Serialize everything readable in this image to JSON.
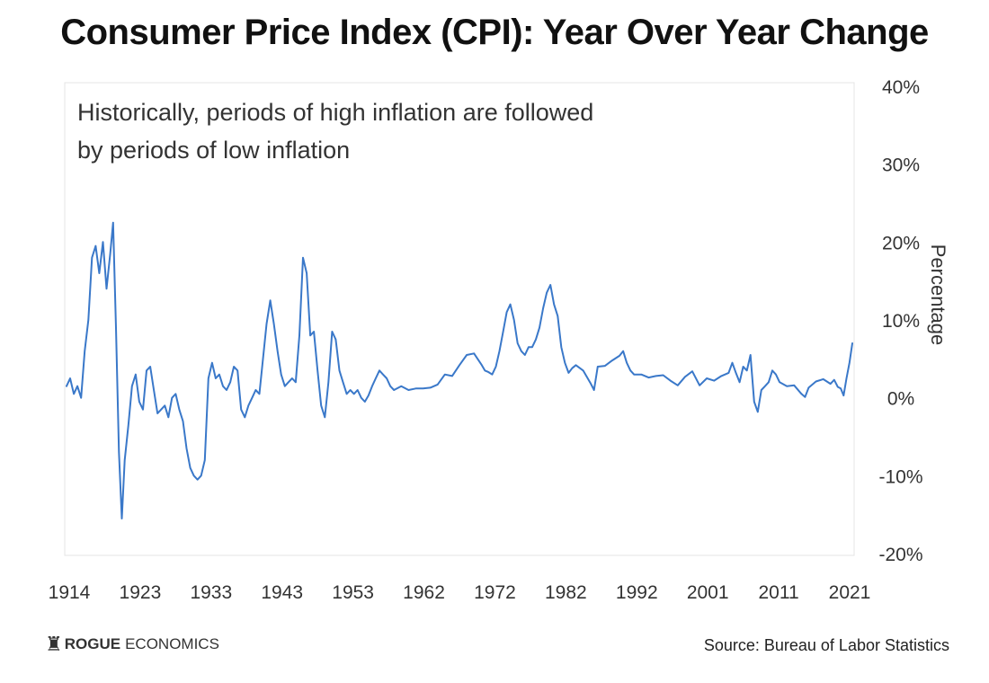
{
  "chart_data": {
    "type": "line",
    "title": "Consumer Price Index (CPI): Year Over Year Change",
    "annotation": [
      "Historically, periods of high inflation are followed",
      "by periods of low inflation"
    ],
    "ylabel": "Percentage",
    "ylim": [
      -20,
      40
    ],
    "y_ticks": [
      "40%",
      "30%",
      "20%",
      "10%",
      "0%",
      "-10%",
      "-20%"
    ],
    "x_ticks": [
      "1914",
      "1923",
      "1933",
      "1943",
      "1953",
      "1962",
      "1972",
      "1982",
      "1992",
      "2001",
      "2011",
      "2021"
    ],
    "x_range": [
      1914,
      2022
    ],
    "y_axis_position": "right",
    "grid": false,
    "line_color": "#3a78c9",
    "series": [
      {
        "x": [
          1914.0,
          1914.5,
          1915.0,
          1915.5,
          1916.0,
          1916.5,
          1917.0,
          1917.5,
          1918.0,
          1918.5,
          1919.0,
          1919.5,
          1920.0,
          1920.4,
          1920.8,
          1921.2,
          1921.6,
          1922.0,
          1922.5,
          1923.0,
          1923.5,
          1924.0,
          1924.5,
          1925.0,
          1925.5,
          1926.0,
          1926.5,
          1927.0,
          1927.5,
          1928.0,
          1928.5,
          1929.0,
          1929.5,
          1930.0,
          1930.5,
          1931.0,
          1931.5,
          1932.0,
          1932.5,
          1933.0,
          1933.5,
          1934.0,
          1934.5,
          1935.0,
          1935.5,
          1936.0,
          1936.5,
          1937.0,
          1937.5,
          1938.0,
          1938.5,
          1939.0,
          1939.5,
          1940.0,
          1940.5,
          1941.0,
          1941.5,
          1942.0,
          1942.5,
          1943.0,
          1943.5,
          1944.0,
          1944.5,
          1945.0,
          1945.5,
          1946.0,
          1946.5,
          1947.0,
          1947.5,
          1948.0,
          1948.5,
          1949.0,
          1949.5,
          1950.0,
          1950.5,
          1951.0,
          1951.5,
          1952.0,
          1952.5,
          1953.0,
          1953.5,
          1954.0,
          1954.5,
          1955.0,
          1955.5,
          1956.0,
          1956.5,
          1957.0,
          1957.5,
          1958.0,
          1958.5,
          1959.0,
          1960.0,
          1961.0,
          1962.0,
          1963.0,
          1964.0,
          1965.0,
          1966.0,
          1967.0,
          1968.0,
          1969.0,
          1970.0,
          1970.5,
          1971.0,
          1971.5,
          1972.0,
          1972.5,
          1973.0,
          1973.5,
          1974.0,
          1974.5,
          1975.0,
          1975.5,
          1976.0,
          1976.5,
          1977.0,
          1977.5,
          1978.0,
          1978.5,
          1979.0,
          1979.5,
          1980.0,
          1980.5,
          1981.0,
          1981.5,
          1982.0,
          1982.5,
          1983.0,
          1983.5,
          1984.0,
          1985.0,
          1986.0,
          1986.5,
          1987.0,
          1988.0,
          1989.0,
          1990.0,
          1990.5,
          1991.0,
          1991.5,
          1992.0,
          1993.0,
          1994.0,
          1995.0,
          1996.0,
          1997.0,
          1998.0,
          1999.0,
          2000.0,
          2001.0,
          2002.0,
          2003.0,
          2004.0,
          2005.0,
          2005.5,
          2006.0,
          2006.5,
          2007.0,
          2007.5,
          2008.0,
          2008.5,
          2009.0,
          2009.5,
          2010.0,
          2010.5,
          2011.0,
          2011.5,
          2012.0,
          2013.0,
          2014.0,
          2015.0,
          2015.5,
          2016.0,
          2017.0,
          2018.0,
          2019.0,
          2019.5,
          2020.0,
          2020.4,
          2020.8,
          2021.2,
          2021.6,
          2022.0
        ],
        "y": [
          1.5,
          2.5,
          0.5,
          1.5,
          0.0,
          6.0,
          10.0,
          18.0,
          19.5,
          16.0,
          20.0,
          14.0,
          18.5,
          22.5,
          9.0,
          -7.0,
          -15.5,
          -8.0,
          -3.5,
          1.5,
          3.0,
          -0.5,
          -1.5,
          3.5,
          4.0,
          1.0,
          -2.0,
          -1.5,
          -1.0,
          -2.5,
          0.0,
          0.5,
          -1.5,
          -3.0,
          -6.5,
          -9.0,
          -10.0,
          -10.5,
          -10.0,
          -8.0,
          2.5,
          4.5,
          2.5,
          3.0,
          1.5,
          1.0,
          2.0,
          4.0,
          3.5,
          -1.5,
          -2.5,
          -1.0,
          0.0,
          1.0,
          0.5,
          5.0,
          9.5,
          12.5,
          9.5,
          6.0,
          3.0,
          1.5,
          2.0,
          2.5,
          2.0,
          8.0,
          18.0,
          16.0,
          8.0,
          8.5,
          3.5,
          -1.0,
          -2.5,
          2.0,
          8.5,
          7.5,
          3.5,
          2.0,
          0.5,
          1.0,
          0.5,
          1.0,
          0.0,
          -0.5,
          0.3,
          1.5,
          2.5,
          3.5,
          3.0,
          2.5,
          1.5,
          1.0,
          1.5,
          1.0,
          1.2,
          1.2,
          1.3,
          1.7,
          3.0,
          2.8,
          4.2,
          5.5,
          5.7,
          5.0,
          4.3,
          3.5,
          3.3,
          3.0,
          4.0,
          6.0,
          8.5,
          11.0,
          12.0,
          10.0,
          7.0,
          6.0,
          5.5,
          6.5,
          6.5,
          7.5,
          9.0,
          11.5,
          13.5,
          14.5,
          12.0,
          10.5,
          6.5,
          4.5,
          3.2,
          3.8,
          4.2,
          3.5,
          1.9,
          1.0,
          4.0,
          4.1,
          4.8,
          5.4,
          6.0,
          4.5,
          3.5,
          3.0,
          3.0,
          2.6,
          2.8,
          2.9,
          2.2,
          1.6,
          2.7,
          3.4,
          1.6,
          2.5,
          2.2,
          2.8,
          3.2,
          4.5,
          3.2,
          2.0,
          4.0,
          3.5,
          5.5,
          -0.5,
          -1.8,
          1.0,
          1.5,
          2.0,
          3.5,
          3.0,
          2.0,
          1.5,
          1.6,
          0.5,
          0.1,
          1.3,
          2.1,
          2.4,
          1.8,
          2.3,
          1.4,
          1.2,
          0.3,
          2.5,
          4.5,
          7.0
        ]
      }
    ]
  },
  "footer": {
    "logo_icon": "rook-icon",
    "logo_bold": "ROGUE",
    "logo_rest": "ECONOMICS",
    "source": "Source: Bureau of Labor Statistics"
  }
}
